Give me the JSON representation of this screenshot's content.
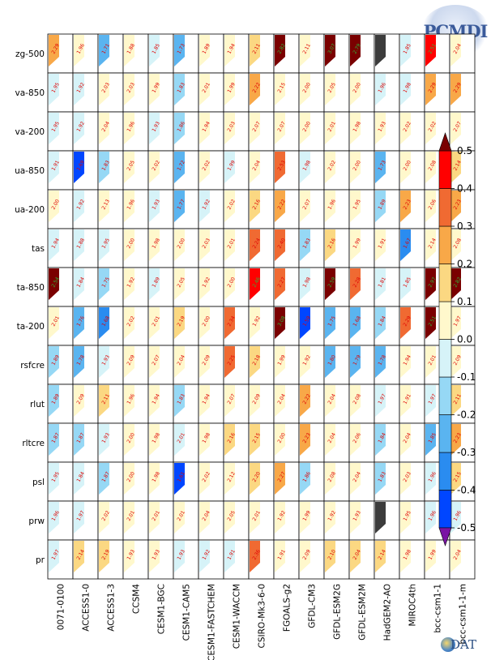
{
  "logos": {
    "pcmdi_label": "PCMDI",
    "cdat_label": "DAT"
  },
  "chart_data": {
    "type": "heatmap",
    "title": "",
    "rows": [
      "zg-500",
      "va-850",
      "va-200",
      "ua-850",
      "ua-200",
      "tas",
      "ta-850",
      "ta-200",
      "rsfcre",
      "rlut",
      "rltcre",
      "psl",
      "prw",
      "pr"
    ],
    "columns": [
      "0071-0100",
      "ACCESS1-0",
      "ACCESS1-3",
      "CCSM4",
      "CESM1-BGC",
      "CESM1-CAM5",
      "CESM1-FASTCHEM",
      "CESM1-WACCM",
      "CSIRO-Mk3-6-0",
      "FGOALS-g2",
      "GFDL-CM3",
      "GFDL-ESM2G",
      "GFDL-ESM2M",
      "HadGEM2-AO",
      "MIROC4th",
      "bcc-csm1-1",
      "bcc-csm1-1-m"
    ],
    "values": [
      [
        0.25,
        0.0,
        -0.22,
        0.0,
        -0.05,
        -0.25,
        0.05,
        0.05,
        0.15,
        0.6,
        0.1,
        0.6,
        0.6,
        null,
        -0.1,
        0.45,
        0.05
      ],
      [
        -0.05,
        -0.05,
        0.05,
        0.05,
        0.0,
        -0.12,
        0.05,
        0.0,
        0.25,
        0.1,
        0.0,
        0.05,
        0.0,
        -0.05,
        -0.05,
        0.25,
        0.25
      ],
      [
        -0.05,
        -0.05,
        0.05,
        0.0,
        -0.05,
        -0.12,
        0.0,
        0.05,
        0.05,
        0.05,
        0.0,
        0.05,
        0.05,
        0.0,
        0.05,
        0.05,
        0.1
      ],
      [
        -0.05,
        -0.4,
        -0.12,
        0.05,
        0.05,
        -0.2,
        0.05,
        -0.05,
        0.05,
        0.35,
        -0.05,
        0.05,
        0.05,
        -0.2,
        0.0,
        0.1,
        0.15
      ],
      [
        0.05,
        -0.05,
        0.1,
        0.0,
        -0.05,
        -0.2,
        -0.05,
        0.05,
        0.15,
        0.25,
        0.05,
        0.0,
        0.0,
        -0.15,
        0.25,
        0.1,
        0.25
      ],
      [
        -0.05,
        -0.1,
        -0.05,
        0.05,
        0.0,
        0.05,
        0.05,
        0.05,
        0.3,
        0.35,
        -0.12,
        0.15,
        0.05,
        0.0,
        -0.35,
        0.1,
        0.05
      ],
      [
        0.6,
        -0.1,
        -0.15,
        0.0,
        -0.1,
        0.05,
        0.0,
        0.05,
        0.45,
        0.3,
        -0.05,
        0.6,
        0.3,
        -0.1,
        -0.1,
        0.6,
        0.6
      ],
      [
        0.05,
        -0.2,
        -0.35,
        0.05,
        0.05,
        0.15,
        0.0,
        0.35,
        0.0,
        0.6,
        -0.4,
        -0.25,
        -0.25,
        -0.15,
        0.3,
        0.6,
        0.0
      ],
      [
        -0.15,
        -0.22,
        -0.05,
        0.05,
        0.05,
        0.05,
        0.1,
        0.3,
        0.15,
        0.0,
        0.0,
        -0.22,
        -0.2,
        -0.22,
        0.0,
        0.05,
        0.1
      ],
      [
        -0.15,
        0.05,
        0.15,
        0.0,
        0.0,
        -0.12,
        0.0,
        0.05,
        0.1,
        0.05,
        0.25,
        0.05,
        0.05,
        -0.05,
        0.0,
        -0.05,
        0.15
      ],
      [
        -0.15,
        -0.15,
        -0.05,
        0.05,
        0.05,
        -0.05,
        0.05,
        0.2,
        0.15,
        0.05,
        0.25,
        0.05,
        0.05,
        -0.15,
        0.05,
        -0.2,
        0.25
      ],
      [
        -0.05,
        -0.1,
        -0.15,
        0.05,
        0.0,
        -0.45,
        0.05,
        0.1,
        0.2,
        0.25,
        -0.12,
        0.1,
        0.05,
        -0.15,
        0.05,
        -0.05,
        0.15
      ],
      [
        -0.05,
        -0.05,
        0.05,
        0.0,
        0.05,
        0.05,
        0.05,
        0.05,
        0.0,
        0.05,
        0.0,
        0.05,
        0.05,
        null,
        0.0,
        -0.05,
        -0.05
      ],
      [
        -0.05,
        0.2,
        0.2,
        0.05,
        0.05,
        -0.05,
        -0.05,
        -0.05,
        0.35,
        0.05,
        0.1,
        0.15,
        0.15,
        0.2,
        0.05,
        0.0,
        0.05
      ]
    ],
    "labels": [
      [
        "2.29",
        "1.96",
        "1.71",
        "1.88",
        "1.85",
        "1.73",
        "1.89",
        "1.94",
        "2.11",
        "2.82",
        "2.11",
        "3.07",
        "2.79",
        "",
        "1.85",
        "2.51",
        "2.04"
      ],
      [
        "1.95",
        "1.92",
        "2.03",
        "2.03",
        "1.99",
        "1.83",
        "2.01",
        "1.99",
        "2.22",
        "2.15",
        "2.00",
        "2.05",
        "2.00",
        "1.96",
        "1.98",
        "2.29",
        "2.29"
      ],
      [
        "1.95",
        "1.92",
        "2.04",
        "1.96",
        "1.93",
        "1.86",
        "1.94",
        "2.03",
        "2.07",
        "2.07",
        "2.00",
        "2.01",
        "1.98",
        "1.93",
        "2.02",
        "2.02",
        "2.07"
      ],
      [
        "1.91",
        "1.69",
        "1.83",
        "2.05",
        "2.02",
        "1.72",
        "2.02",
        "1.99",
        "2.04",
        "2.53",
        "1.98",
        "2.02",
        "2.00",
        "1.73",
        "2.00",
        "2.08",
        "2.14"
      ],
      [
        "2.00",
        "1.92",
        "2.13",
        "1.96",
        "1.93",
        "1.77",
        "1.92",
        "2.02",
        "2.16",
        "2.22",
        "2.07",
        "1.96",
        "1.95",
        "1.89",
        "2.23",
        "2.06",
        "2.23"
      ],
      [
        "1.94",
        "1.88",
        "1.95",
        "2.00",
        "1.98",
        "2.00",
        "2.03",
        "2.01",
        "2.24",
        "2.40",
        "1.83",
        "2.16",
        "1.99",
        "1.91",
        "1.67",
        "2.14",
        "2.08"
      ],
      [
        "2.54",
        "1.84",
        "1.75",
        "1.92",
        "1.89",
        "2.05",
        "1.92",
        "2.00",
        "2.46",
        "2.27",
        "1.98",
        "2.59",
        "2.28",
        "1.81",
        "1.85",
        "2.97",
        "2.82"
      ],
      [
        "2.01",
        "1.76",
        "1.68",
        "2.02",
        "2.01",
        "2.19",
        "2.00",
        "2.34",
        "1.92",
        "3.08",
        "1.59",
        "1.75",
        "1.68",
        "1.84",
        "2.29",
        "2.51",
        "1.97"
      ],
      [
        "1.89",
        "1.78",
        "1.93",
        "2.09",
        "2.07",
        "2.04",
        "2.09",
        "2.25",
        "2.18",
        "1.99",
        "1.92",
        "1.80",
        "1.79",
        "1.78",
        "1.94",
        "2.01",
        "2.09"
      ],
      [
        "1.89",
        "2.09",
        "2.11",
        "1.96",
        "1.94",
        "1.83",
        "1.94",
        "2.07",
        "2.09",
        "2.04",
        "2.22",
        "2.04",
        "2.08",
        "1.97",
        "1.91",
        "1.97",
        "2.11"
      ],
      [
        "1.87",
        "1.87",
        "1.93",
        "2.00",
        "1.98",
        "2.01",
        "1.98",
        "2.16",
        "2.15",
        "2.00",
        "2.23",
        "2.04",
        "2.06",
        "1.84",
        "2.04",
        "1.85",
        "2.23"
      ],
      [
        "1.95",
        "1.84",
        "1.87",
        "2.00",
        "1.98",
        "1.61",
        "2.02",
        "2.12",
        "2.20",
        "2.27",
        "1.86",
        "2.08",
        "2.04",
        "1.83",
        "2.03",
        "1.96",
        "2.15"
      ],
      [
        "1.96",
        "1.97",
        "2.02",
        "2.01",
        "2.01",
        "2.01",
        "2.04",
        "2.05",
        "2.01",
        "1.92",
        "1.99",
        "1.92",
        "1.93",
        "",
        "1.95",
        "1.96",
        "1.96"
      ],
      [
        "1.97",
        "2.14",
        "2.19",
        "1.93",
        "1.93",
        "1.93",
        "1.92",
        "1.91",
        "2.36",
        "1.91",
        "2.09",
        "2.10",
        "2.04",
        "2.14",
        "1.98",
        "1.99",
        "2.04"
      ]
    ],
    "missing_color": "#3c3c3c",
    "colorbar": {
      "ticks": [
        "0.5",
        "0.4",
        "0.3",
        "0.2",
        "0.1",
        "0.0",
        "-0.1",
        "-0.2",
        "-0.3",
        "-0.4",
        "-0.5"
      ],
      "range": [
        -0.5,
        0.5
      ],
      "colors": [
        "#0046ff",
        "#2a8cf0",
        "#5ab4f0",
        "#96d8f5",
        "#d6f3f8",
        "#fff8cc",
        "#fbd882",
        "#f8a848",
        "#f06a32",
        "#ff0000"
      ],
      "under_color": "#7a14a4",
      "over_color": "#7a0000"
    }
  }
}
